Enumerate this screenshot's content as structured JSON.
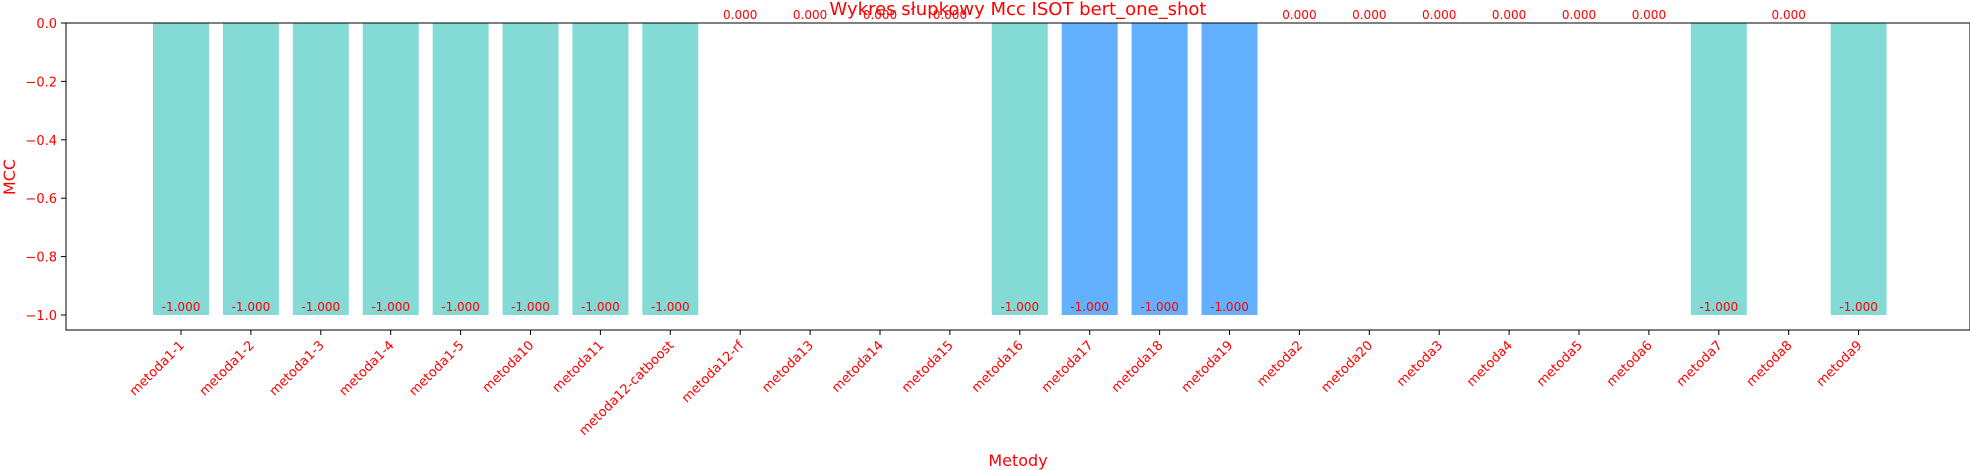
{
  "colors": {
    "text": "#ff0000",
    "bar_primary": "#84dbd5",
    "bar_secondary": "#62b0fe",
    "axis": "#000000"
  },
  "chart_data": {
    "type": "bar",
    "title": "Wykres słupkowy Mcc ISOT bert_one_shot",
    "xlabel": "Metody",
    "ylabel": "MCC",
    "ylim": [
      -1.05,
      0.0
    ],
    "yticks": [
      0.0,
      -0.2,
      -0.4,
      -0.6,
      -0.8,
      -1.0
    ],
    "ytick_labels": [
      "0.0",
      "−0.2",
      "−0.4",
      "−0.6",
      "−0.8",
      "−1.0"
    ],
    "grid": false,
    "categories": [
      "metoda1-1",
      "metoda1-2",
      "metoda1-3",
      "metoda1-4",
      "metoda1-5",
      "metoda10",
      "metoda11",
      "metoda12-catboost",
      "metoda12-rf",
      "metoda13",
      "metoda14",
      "metoda15",
      "metoda16",
      "metoda17",
      "metoda18",
      "metoda19",
      "metoda2",
      "metoda20",
      "metoda3",
      "metoda4",
      "metoda5",
      "metoda6",
      "metoda7",
      "metoda8",
      "metoda9"
    ],
    "values": [
      -1.0,
      -1.0,
      -1.0,
      -1.0,
      -1.0,
      -1.0,
      -1.0,
      -1.0,
      0.0,
      0.0,
      0.0,
      0.0,
      -1.0,
      -1.0,
      -1.0,
      -1.0,
      0.0,
      0.0,
      0.0,
      0.0,
      0.0,
      0.0,
      -1.0,
      0.0,
      -1.0
    ],
    "value_labels": [
      "-1.000",
      "-1.000",
      "-1.000",
      "-1.000",
      "-1.000",
      "-1.000",
      "-1.000",
      "-1.000",
      "0.000",
      "0.000",
      "0.000",
      "0.000",
      "-1.000",
      "-1.000",
      "-1.000",
      "-1.000",
      "0.000",
      "0.000",
      "0.000",
      "0.000",
      "0.000",
      "0.000",
      "-1.000",
      "0.000",
      "-1.000"
    ],
    "bar_colors": [
      "#84dbd5",
      "#84dbd5",
      "#84dbd5",
      "#84dbd5",
      "#84dbd5",
      "#84dbd5",
      "#84dbd5",
      "#84dbd5",
      "#84dbd5",
      "#84dbd5",
      "#84dbd5",
      "#84dbd5",
      "#84dbd5",
      "#62b0fe",
      "#62b0fe",
      "#62b0fe",
      "#84dbd5",
      "#84dbd5",
      "#84dbd5",
      "#84dbd5",
      "#84dbd5",
      "#84dbd5",
      "#84dbd5",
      "#84dbd5",
      "#84dbd5"
    ]
  }
}
